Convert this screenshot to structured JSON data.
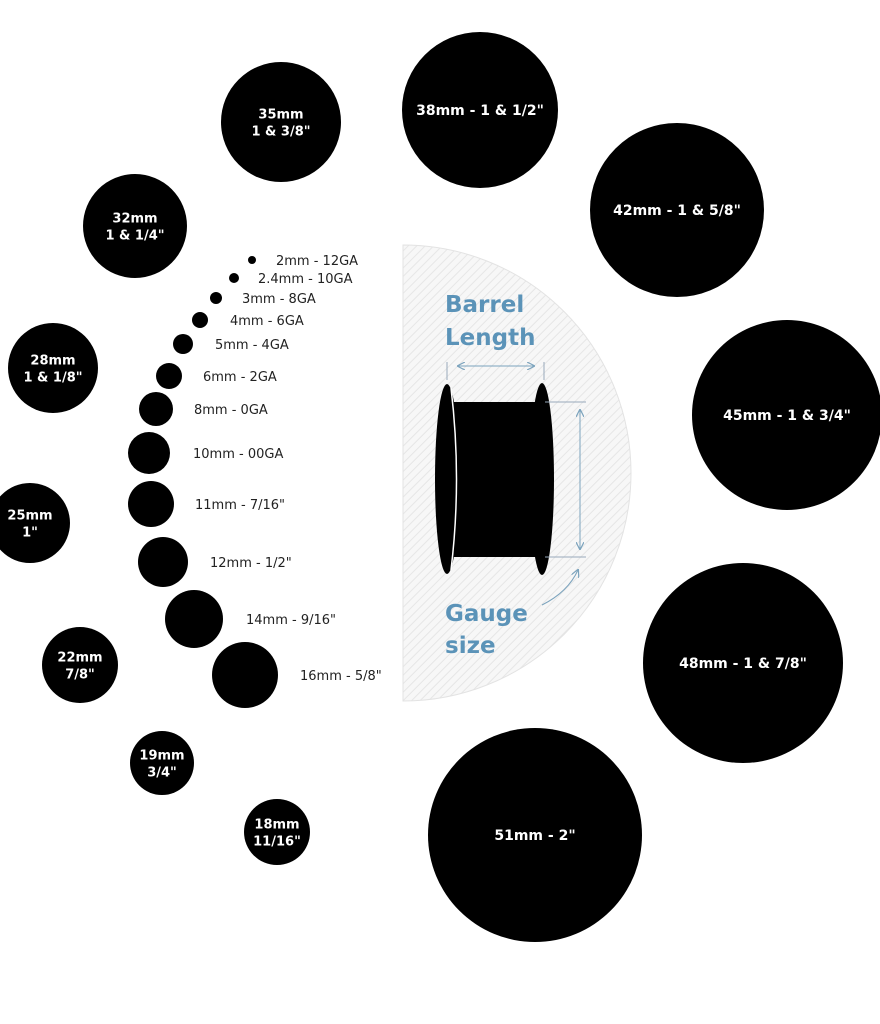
{
  "colors": {
    "circle": "#000000",
    "accent": "#5b93b8",
    "panel": "#f4f4f4"
  },
  "diagram": {
    "barrel_label": [
      "Barrel",
      "Length"
    ],
    "gauge_label": [
      "Gauge",
      "size"
    ]
  },
  "small_sizes": [
    {
      "label": "2mm - 12GA",
      "mm": 2
    },
    {
      "label": "2.4mm - 10GA",
      "mm": 2.4
    },
    {
      "label": "3mm - 8GA",
      "mm": 3
    },
    {
      "label": "4mm - 6GA",
      "mm": 4
    },
    {
      "label": "5mm - 4GA",
      "mm": 5
    },
    {
      "label": "6mm - 2GA",
      "mm": 6
    },
    {
      "label": "8mm - 0GA",
      "mm": 8
    },
    {
      "label": "10mm - 00GA",
      "mm": 10
    },
    {
      "label": "11mm - 7/16\"",
      "mm": 11
    },
    {
      "label": "12mm - 1/2\"",
      "mm": 12
    },
    {
      "label": "14mm - 9/16\"",
      "mm": 14
    },
    {
      "label": "16mm - 5/8\"",
      "mm": 16
    }
  ],
  "large_sizes": [
    {
      "lines": [
        "18mm",
        "11/16\""
      ],
      "mm": 18
    },
    {
      "lines": [
        "19mm",
        "3/4\""
      ],
      "mm": 19
    },
    {
      "lines": [
        "22mm",
        "7/8\""
      ],
      "mm": 22
    },
    {
      "lines": [
        "25mm",
        "1\""
      ],
      "mm": 25
    },
    {
      "lines": [
        "28mm",
        "1 & 1/8\""
      ],
      "mm": 28
    },
    {
      "lines": [
        "32mm",
        "1 & 1/4\""
      ],
      "mm": 32
    },
    {
      "lines": [
        "35mm",
        "1 & 3/8\""
      ],
      "mm": 35
    },
    {
      "lines": [
        "38mm - 1 & 1/2\""
      ],
      "mm": 38
    },
    {
      "lines": [
        "42mm - 1 & 5/8\""
      ],
      "mm": 42
    },
    {
      "lines": [
        "45mm - 1 & 3/4\""
      ],
      "mm": 45
    },
    {
      "lines": [
        "48mm - 1 & 7/8\""
      ],
      "mm": 48
    },
    {
      "lines": [
        "51mm - 2\""
      ],
      "mm": 51
    }
  ]
}
